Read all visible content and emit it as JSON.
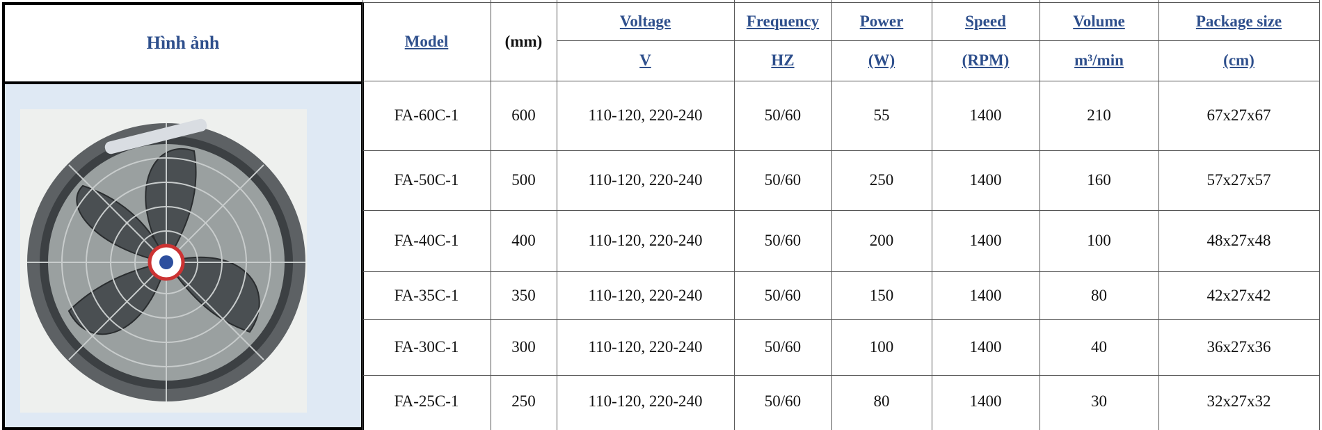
{
  "image_header": "Hình ảnh",
  "table": {
    "headers": [
      {
        "top": "Model"
      },
      {
        "top": "(mm)"
      },
      {
        "top": "Voltage",
        "bottom": "V"
      },
      {
        "top": "Frequency",
        "bottom": "HZ"
      },
      {
        "top": "Power",
        "bottom": "(W)"
      },
      {
        "top": "Speed",
        "bottom": "(RPM)"
      },
      {
        "top": "Volume",
        "bottom": "m³/min"
      },
      {
        "top": "Package size",
        "bottom": "(cm)"
      }
    ],
    "rows": [
      [
        "FA-60C-1",
        "600",
        "110-120, 220-240",
        "50/60",
        "55",
        "1400",
        "210",
        "67x27x67"
      ],
      [
        "FA-50C-1",
        "500",
        "110-120, 220-240",
        "50/60",
        "250",
        "1400",
        "160",
        "57x27x57"
      ],
      [
        "FA-40C-1",
        "400",
        "110-120, 220-240",
        "50/60",
        "200",
        "1400",
        "100",
        "48x27x48"
      ],
      [
        "FA-35C-1",
        "350",
        "110-120, 220-240",
        "50/60",
        "150",
        "1400",
        "80",
        "42x27x42"
      ],
      [
        "FA-30C-1",
        "300",
        "110-120, 220-240",
        "50/60",
        "100",
        "1400",
        "40",
        "36x27x36"
      ],
      [
        "FA-25C-1",
        "250",
        "110-120, 220-240",
        "50/60",
        "80",
        "1400",
        "30",
        "32x27x32"
      ]
    ]
  }
}
